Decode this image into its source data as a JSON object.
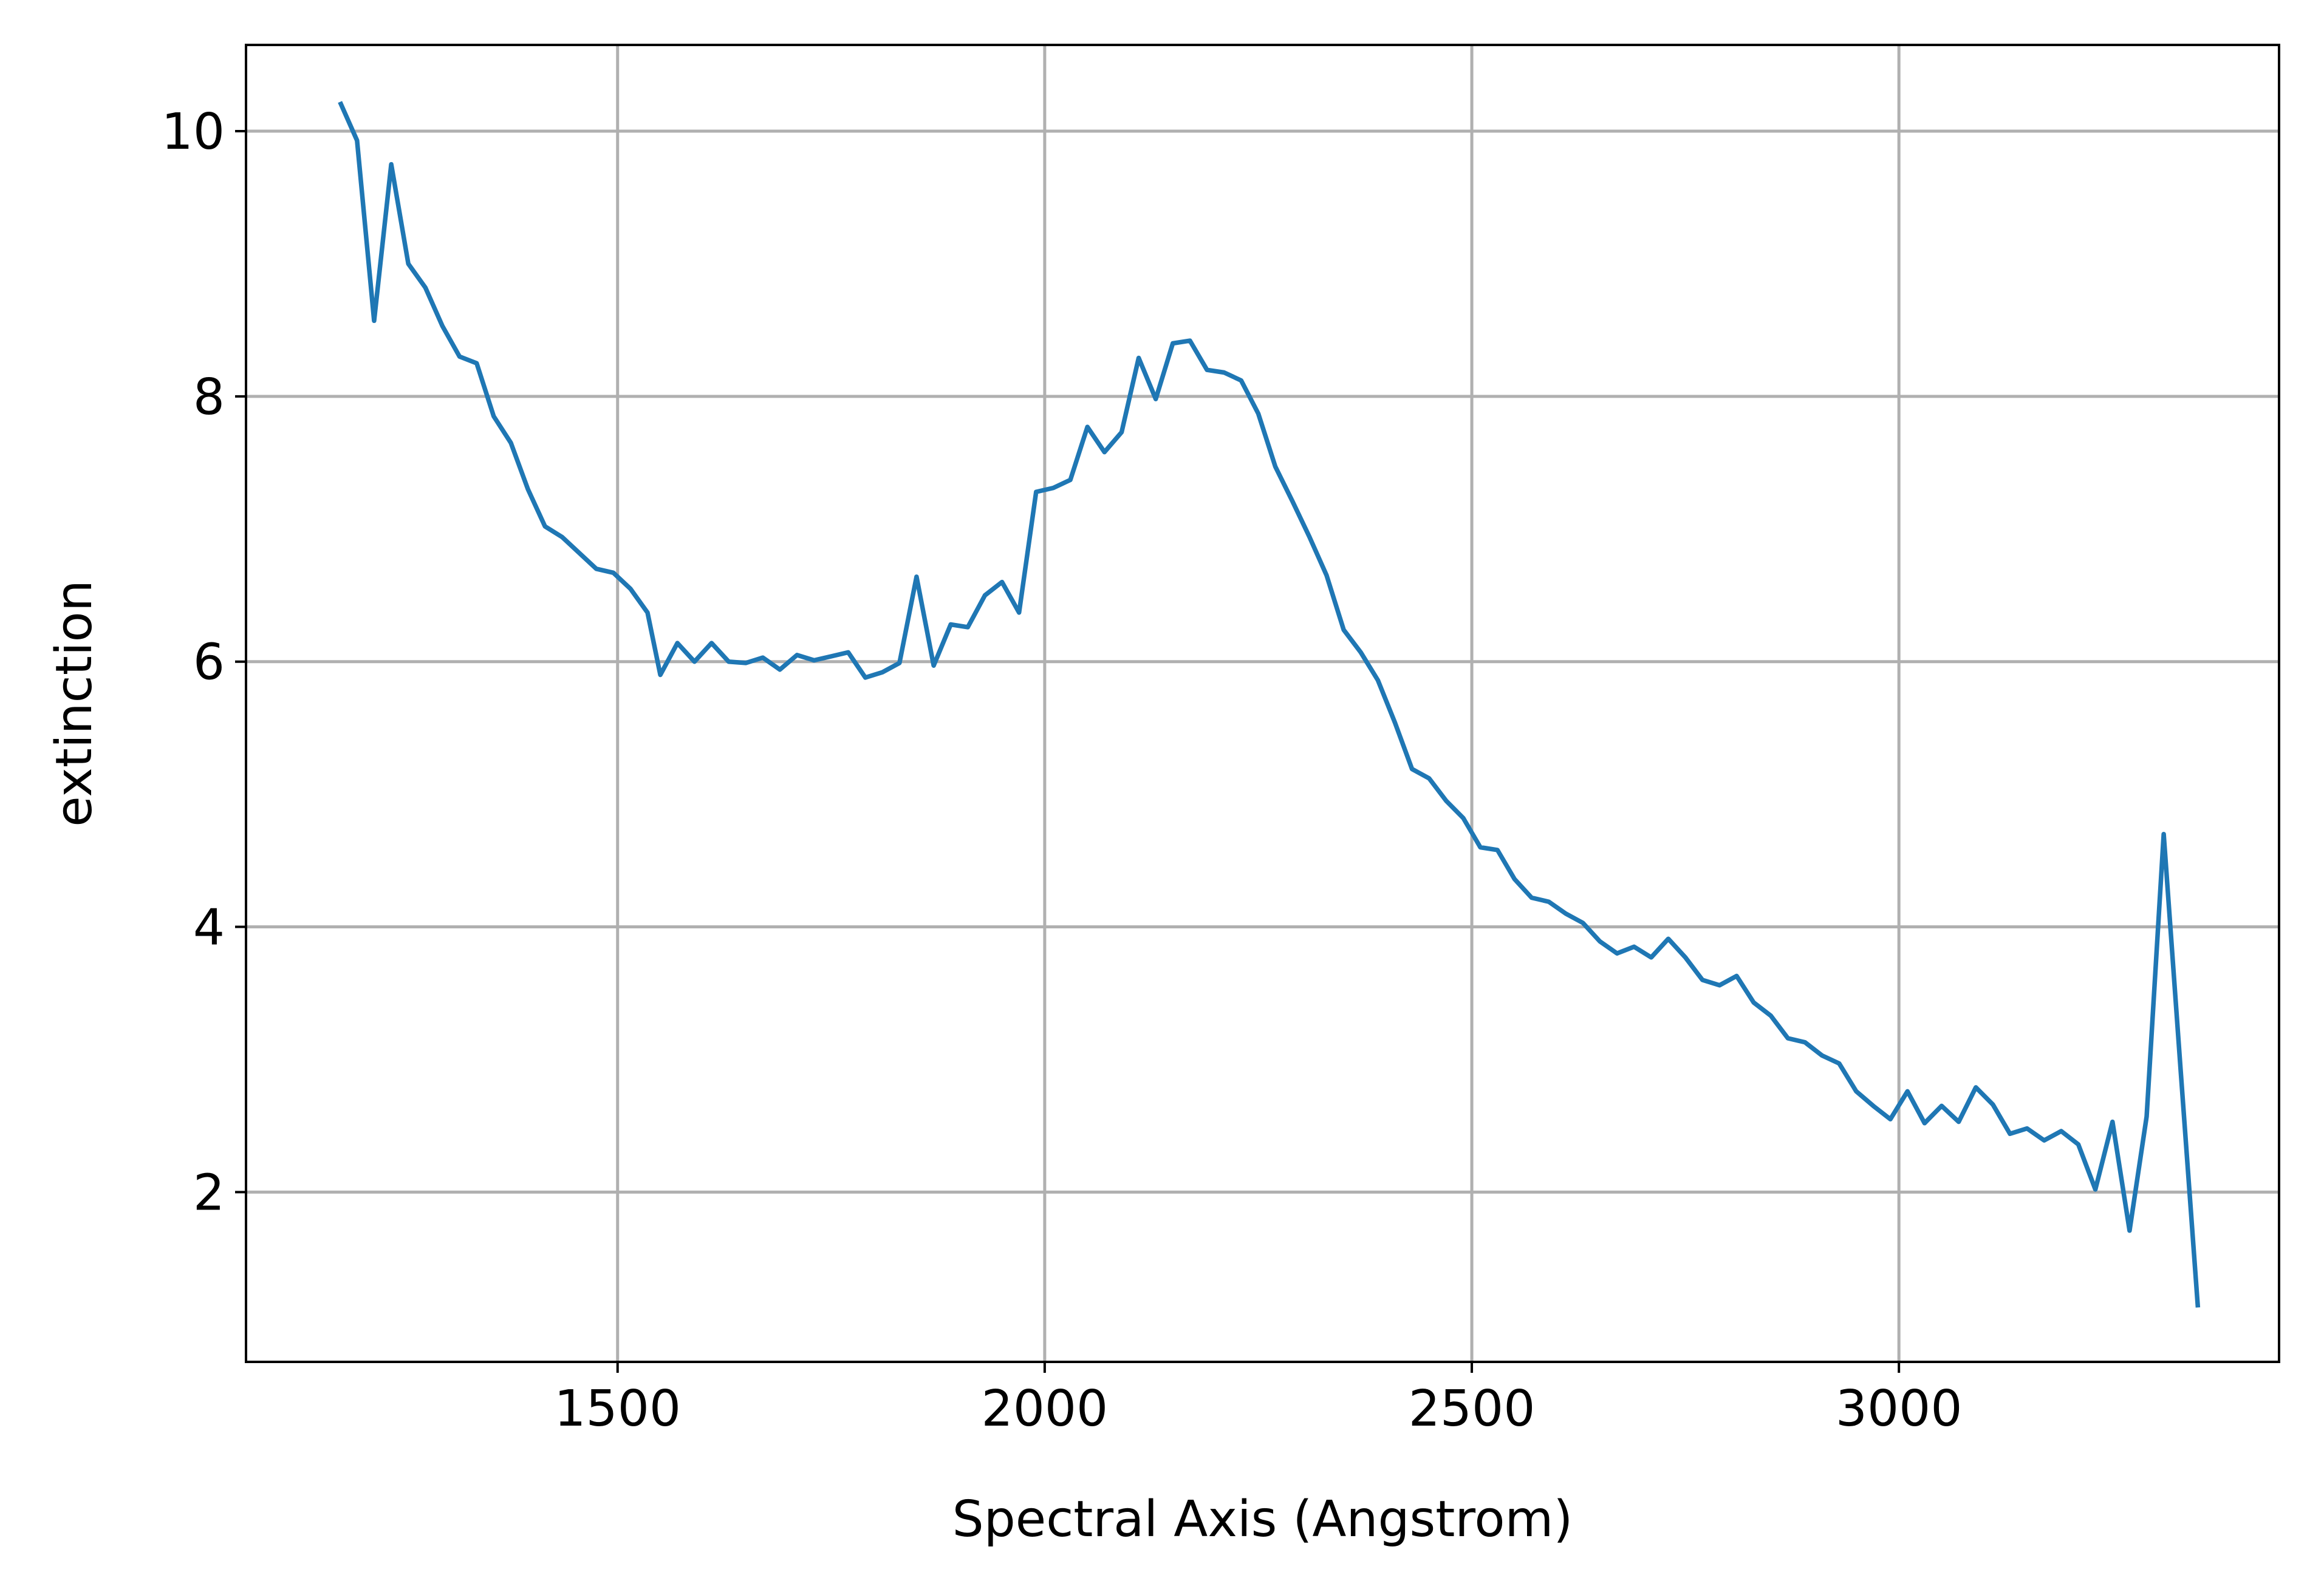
{
  "chart_data": {
    "type": "line",
    "title": "",
    "xlabel": "Spectral Axis (Angstrom)",
    "ylabel": "extinction",
    "xlim": [
      1065,
      3445
    ],
    "ylim": [
      0.72,
      10.65
    ],
    "xticks": [
      1500,
      2000,
      2500,
      3000
    ],
    "yticks": [
      2,
      4,
      6,
      8,
      10
    ],
    "xtick_labels": [
      "1500",
      "2000",
      "2500",
      "3000"
    ],
    "ytick_labels": [
      "2",
      "4",
      "6",
      "8",
      "10"
    ],
    "grid": true,
    "series": [
      {
        "color": "#1f77b4",
        "x": [
          1175,
          1195,
          1215,
          1235,
          1255,
          1275,
          1295,
          1315,
          1335,
          1355,
          1375,
          1395,
          1415,
          1435,
          1455,
          1475,
          1495,
          1515,
          1535,
          1550,
          1570,
          1590,
          1610,
          1630,
          1650,
          1670,
          1690,
          1710,
          1730,
          1750,
          1770,
          1790,
          1810,
          1830,
          1850,
          1870,
          1890,
          1910,
          1930,
          1950,
          1970,
          1990,
          2010,
          2030,
          2050,
          2070,
          2090,
          2110,
          2130,
          2150,
          2170,
          2190,
          2210,
          2230,
          2250,
          2270,
          2290,
          2310,
          2330,
          2350,
          2370,
          2390,
          2410,
          2430,
          2450,
          2470,
          2490,
          2510,
          2530,
          2550,
          2570,
          2590,
          2610,
          2630,
          2650,
          2670,
          2690,
          2710,
          2730,
          2750,
          2770,
          2790,
          2810,
          2830,
          2850,
          2870,
          2890,
          2910,
          2930,
          2950,
          2970,
          2990,
          3010,
          3030,
          3050,
          3070,
          3090,
          3110,
          3130,
          3150,
          3170,
          3190,
          3210,
          3230,
          3250,
          3270,
          3290,
          3310,
          3330,
          3350
        ],
        "y": [
          10.22,
          9.93,
          8.57,
          9.75,
          9.0,
          8.82,
          8.53,
          8.3,
          8.25,
          7.85,
          7.65,
          7.3,
          7.02,
          6.94,
          6.82,
          6.7,
          6.67,
          6.55,
          6.37,
          5.9,
          6.14,
          6.0,
          6.14,
          6.0,
          5.99,
          6.03,
          5.94,
          6.05,
          6.01,
          6.04,
          6.07,
          5.88,
          5.92,
          5.99,
          6.64,
          5.97,
          6.28,
          6.26,
          6.5,
          6.6,
          6.37,
          7.28,
          7.31,
          7.37,
          7.77,
          7.58,
          7.73,
          8.29,
          7.98,
          8.4,
          8.42,
          8.2,
          8.18,
          8.12,
          7.87,
          7.47,
          7.21,
          6.94,
          6.65,
          6.24,
          6.07,
          5.86,
          5.54,
          5.19,
          5.12,
          4.95,
          4.82,
          4.6,
          4.58,
          4.36,
          4.22,
          4.19,
          4.1,
          4.03,
          3.89,
          3.8,
          3.85,
          3.77,
          3.91,
          3.77,
          3.6,
          3.56,
          3.63,
          3.43,
          3.33,
          3.16,
          3.13,
          3.03,
          2.97,
          2.76,
          2.65,
          2.55,
          2.76,
          2.52,
          2.65,
          2.53,
          2.79,
          2.66,
          2.44,
          2.48,
          2.39,
          2.46,
          2.36,
          2.02,
          2.53,
          1.71,
          2.57,
          4.7,
          2.9,
          1.13
        ]
      }
    ]
  }
}
